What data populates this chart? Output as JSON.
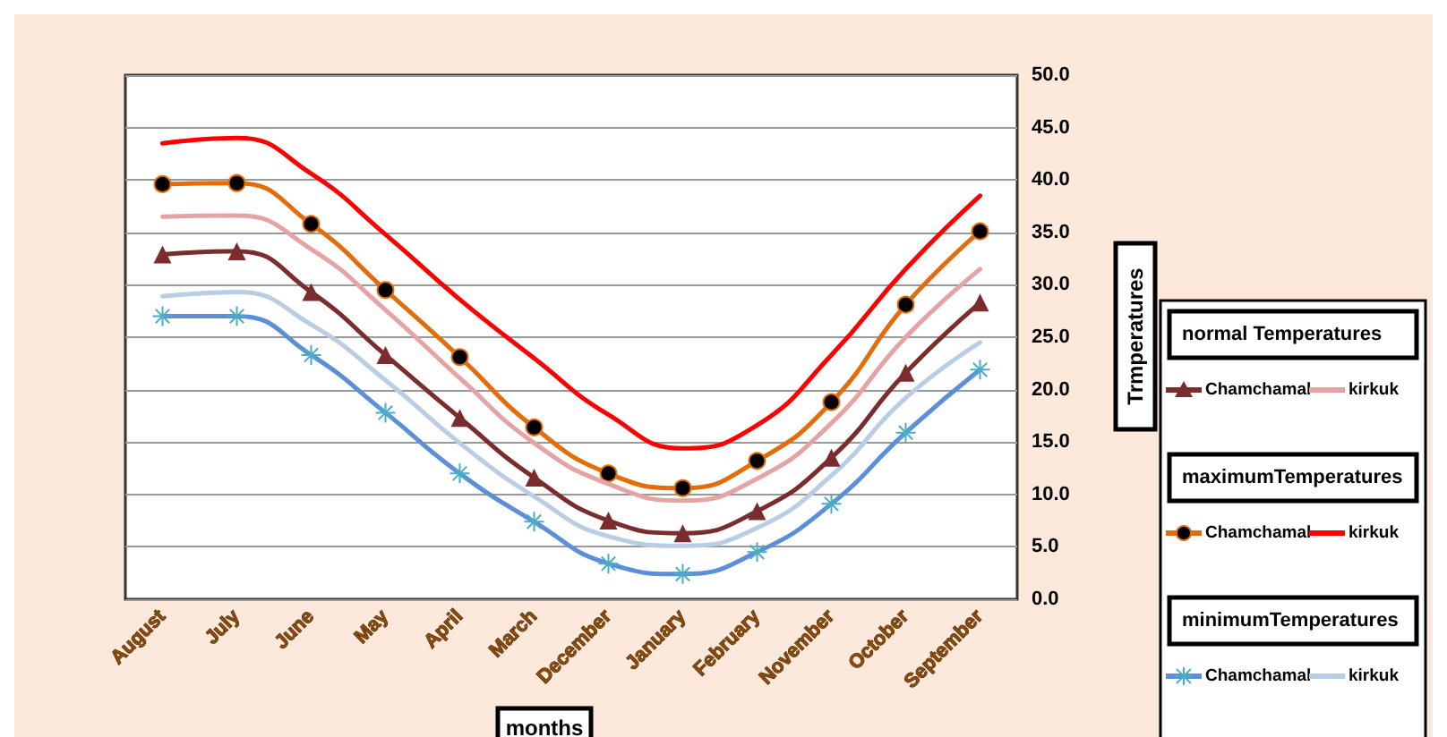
{
  "chart_data": {
    "type": "line",
    "xlabel": "months",
    "ylabel": "Trmperatures",
    "categories": [
      "August",
      "July",
      "June",
      "May",
      "April",
      "March",
      "December",
      "January",
      "February",
      "November",
      "October",
      "September"
    ],
    "ylim": [
      0,
      50
    ],
    "yticks": [
      {
        "value": 0,
        "label": "0.0"
      },
      {
        "value": 5,
        "label": "5.0"
      },
      {
        "value": 10,
        "label": "10.0"
      },
      {
        "value": 15,
        "label": "15.0"
      },
      {
        "value": 20,
        "label": "20.0"
      },
      {
        "value": 25,
        "label": "25.0"
      },
      {
        "value": 30,
        "label": "30.0"
      },
      {
        "value": 35,
        "label": "35.0"
      },
      {
        "value": 40,
        "label": "40.0"
      },
      {
        "value": 45,
        "label": "45.0"
      },
      {
        "value": 50,
        "label": "50.0"
      }
    ],
    "grid": "y",
    "legend": "right",
    "annotations": [
      "normal Temperatures",
      "maximumTemperatures",
      "minimumTemperatures"
    ],
    "series": [
      {
        "name": "Chamchamal",
        "color": "#7b2c2c",
        "marker": "triangle",
        "values": [
          32.9,
          33.2,
          29.3,
          23.3,
          17.3,
          11.6,
          7.5,
          6.3,
          8.4,
          13.5,
          21.6,
          28.3
        ]
      },
      {
        "name": "kirkuk",
        "color": "#e6a3a3",
        "marker": "none",
        "values": [
          36.5,
          36.6,
          33.4,
          27.6,
          21.1,
          14.9,
          11.0,
          9.4,
          11.5,
          16.8,
          25.0,
          31.5
        ]
      },
      {
        "name": "Chamchamal",
        "color": "#e46c0a",
        "marker": "circle",
        "values": [
          39.6,
          39.7,
          35.8,
          29.5,
          23.1,
          16.4,
          12.0,
          10.6,
          13.2,
          18.8,
          28.1,
          35.1
        ]
      },
      {
        "name": "kirkuk",
        "color": "#ff0000",
        "marker": "none",
        "values": [
          43.5,
          44.0,
          40.6,
          34.8,
          28.6,
          23.0,
          17.6,
          14.4,
          16.6,
          23.3,
          31.5,
          38.5
        ]
      },
      {
        "name": "Chamchamal",
        "color": "#5b8fd9",
        "marker": "cross",
        "values": [
          27.0,
          27.0,
          23.3,
          17.8,
          12.0,
          7.4,
          3.4,
          2.4,
          4.5,
          9.1,
          15.9,
          21.9
        ]
      },
      {
        "name": "kirkuk",
        "color": "#b9cde5",
        "marker": "none",
        "values": [
          28.9,
          29.3,
          26.2,
          20.9,
          14.9,
          9.8,
          6.0,
          5.1,
          6.8,
          11.8,
          19.2,
          24.5
        ]
      }
    ]
  }
}
